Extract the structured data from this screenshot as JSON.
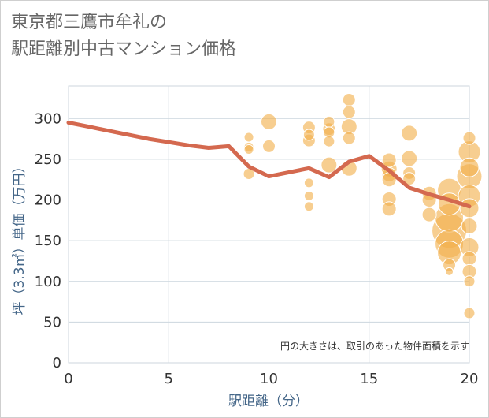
{
  "title": "東京都三鷹市牟礼の\n駅距離別中古マンション価格",
  "chart_data": {
    "type": "scatter",
    "title": "東京都三鷹市牟礼の駅距離別中古マンション価格",
    "xlabel": "駅距離（分）",
    "ylabel": "坪（3.3㎡）単価（万円）",
    "annotation": "円の大きさは、取引のあった物件面積を示す",
    "xlim": [
      0,
      20
    ],
    "ylim": [
      0,
      340
    ],
    "xticks": [
      "0",
      "5",
      "10",
      "15",
      "20"
    ],
    "yticks": [
      "0",
      "50",
      "100",
      "150",
      "200",
      "250",
      "300"
    ],
    "grid": true,
    "colors": {
      "bubble": "#F2B04C",
      "line": "#D4694F",
      "grid": "#CCD6DE",
      "axis_text": "#333333"
    },
    "series": [
      {
        "type": "scatter",
        "points": [
          {
            "x": 9,
            "y": 277,
            "r": 6
          },
          {
            "x": 9,
            "y": 265,
            "r": 6
          },
          {
            "x": 9,
            "y": 262,
            "r": 6
          },
          {
            "x": 9,
            "y": 232,
            "r": 7
          },
          {
            "x": 10,
            "y": 296,
            "r": 10
          },
          {
            "x": 10,
            "y": 266,
            "r": 8
          },
          {
            "x": 12,
            "y": 289,
            "r": 8
          },
          {
            "x": 12,
            "y": 280,
            "r": 7
          },
          {
            "x": 12,
            "y": 273,
            "r": 8
          },
          {
            "x": 12,
            "y": 221,
            "r": 6
          },
          {
            "x": 12,
            "y": 205,
            "r": 6
          },
          {
            "x": 12,
            "y": 192,
            "r": 6
          },
          {
            "x": 13,
            "y": 296,
            "r": 7
          },
          {
            "x": 13,
            "y": 287,
            "r": 8
          },
          {
            "x": 13,
            "y": 283,
            "r": 7
          },
          {
            "x": 13,
            "y": 272,
            "r": 7
          },
          {
            "x": 13,
            "y": 243,
            "r": 10
          },
          {
            "x": 14,
            "y": 323,
            "r": 8
          },
          {
            "x": 14,
            "y": 308,
            "r": 8
          },
          {
            "x": 14,
            "y": 290,
            "r": 10
          },
          {
            "x": 14,
            "y": 276,
            "r": 8
          },
          {
            "x": 14,
            "y": 239,
            "r": 10
          },
          {
            "x": 16,
            "y": 249,
            "r": 9
          },
          {
            "x": 16,
            "y": 238,
            "r": 10
          },
          {
            "x": 16,
            "y": 231,
            "r": 9
          },
          {
            "x": 16,
            "y": 225,
            "r": 9
          },
          {
            "x": 16,
            "y": 201,
            "r": 9
          },
          {
            "x": 16,
            "y": 189,
            "r": 9
          },
          {
            "x": 17,
            "y": 282,
            "r": 10
          },
          {
            "x": 17,
            "y": 251,
            "r": 10
          },
          {
            "x": 17,
            "y": 233,
            "r": 8
          },
          {
            "x": 17,
            "y": 226,
            "r": 8
          },
          {
            "x": 18,
            "y": 208,
            "r": 9
          },
          {
            "x": 18,
            "y": 200,
            "r": 9
          },
          {
            "x": 18,
            "y": 182,
            "r": 9
          },
          {
            "x": 19,
            "y": 212,
            "r": 15
          },
          {
            "x": 19,
            "y": 195,
            "r": 14
          },
          {
            "x": 19,
            "y": 178,
            "r": 18
          },
          {
            "x": 19,
            "y": 162,
            "r": 22
          },
          {
            "x": 19,
            "y": 146,
            "r": 18
          },
          {
            "x": 19,
            "y": 135,
            "r": 15
          },
          {
            "x": 19,
            "y": 120,
            "r": 8
          },
          {
            "x": 19,
            "y": 112,
            "r": 5
          },
          {
            "x": 20,
            "y": 276,
            "r": 8
          },
          {
            "x": 20,
            "y": 259,
            "r": 14
          },
          {
            "x": 20,
            "y": 240,
            "r": 12
          },
          {
            "x": 20,
            "y": 229,
            "r": 16
          },
          {
            "x": 20,
            "y": 205,
            "r": 14
          },
          {
            "x": 20,
            "y": 190,
            "r": 12
          },
          {
            "x": 20,
            "y": 168,
            "r": 10
          },
          {
            "x": 20,
            "y": 142,
            "r": 12
          },
          {
            "x": 20,
            "y": 128,
            "r": 9
          },
          {
            "x": 20,
            "y": 112,
            "r": 9
          },
          {
            "x": 20,
            "y": 100,
            "r": 7
          },
          {
            "x": 20,
            "y": 61,
            "r": 7
          }
        ]
      },
      {
        "type": "line",
        "x": [
          0,
          1,
          2,
          3,
          4,
          5,
          6,
          7,
          8,
          9,
          10,
          11,
          12,
          13,
          14,
          15,
          16,
          17,
          18,
          19,
          20
        ],
        "values": [
          295,
          290,
          285,
          280,
          275,
          271,
          267,
          264,
          266,
          241,
          229,
          234,
          239,
          228,
          247,
          254,
          236,
          215,
          207,
          200,
          192
        ]
      }
    ]
  }
}
